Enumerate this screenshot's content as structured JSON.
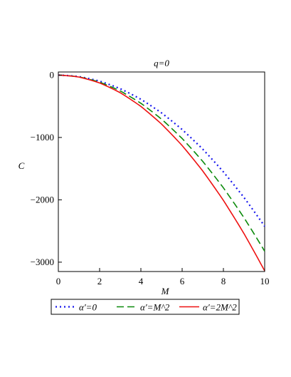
{
  "chart_data": {
    "type": "line",
    "title": "q=0",
    "xlabel": "M",
    "ylabel": "C",
    "xlim": [
      0,
      10
    ],
    "ylim": [
      -3150,
      50
    ],
    "x_ticks": [
      0,
      2,
      4,
      6,
      8,
      10
    ],
    "x_tick_labels": [
      "0",
      "2",
      "4",
      "6",
      "8",
      "10"
    ],
    "y_ticks": [
      0,
      -1000,
      -2000,
      -3000
    ],
    "y_tick_labels": [
      "0",
      "−1000",
      "−2000",
      "−3000"
    ],
    "grid": false,
    "legend_position": "bottom",
    "x": [
      0,
      1,
      2,
      3,
      4,
      5,
      6,
      7,
      8,
      9,
      10
    ],
    "series": [
      {
        "name": "α′=0",
        "color": "#1515ee",
        "dash": "dotted",
        "values": [
          0,
          -24,
          -97,
          -218,
          -388,
          -606,
          -873,
          -1188,
          -1552,
          -1964,
          -2425
        ]
      },
      {
        "name": "α′=M^2",
        "color": "#0a8a0a",
        "dash": "dashed",
        "values": [
          0,
          -28,
          -113,
          -254,
          -452,
          -706,
          -1017,
          -1384,
          -1808,
          -2288,
          -2825
        ]
      },
      {
        "name": "α′=2M^2",
        "color": "#ee1111",
        "dash": "solid",
        "values": [
          0,
          -31,
          -126,
          -283,
          -502,
          -785,
          -1130,
          -1538,
          -2009,
          -2543,
          -3140
        ]
      }
    ]
  }
}
